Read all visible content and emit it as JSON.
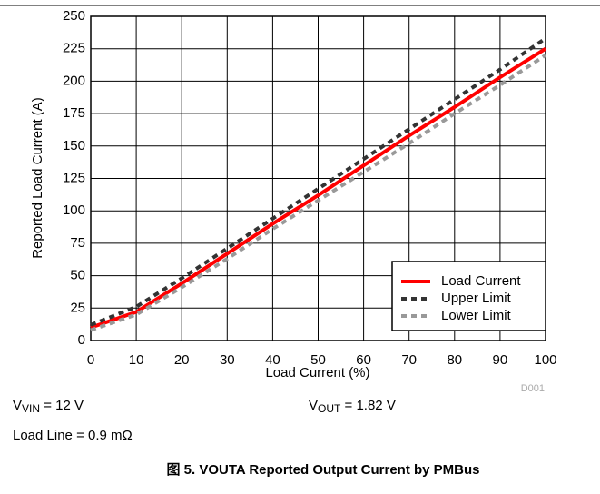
{
  "chart_data": {
    "type": "line",
    "x": [
      0,
      10,
      20,
      30,
      40,
      50,
      60,
      70,
      80,
      90,
      100
    ],
    "series": [
      {
        "name": "Load Current",
        "color": "#ff0000",
        "dash": "solid",
        "values": [
          10,
          22,
          44,
          67,
          90,
          112,
          135,
          158,
          180,
          203,
          225
        ]
      },
      {
        "name": "Upper Limit",
        "color": "#333333",
        "dash": "dashed",
        "values": [
          12,
          26,
          48,
          71,
          94,
          117,
          140,
          163,
          186,
          209,
          233
        ]
      },
      {
        "name": "Lower Limit",
        "color": "#999999",
        "dash": "dashed",
        "values": [
          8,
          20,
          41,
          63,
          86,
          108,
          130,
          152,
          175,
          197,
          220
        ]
      }
    ],
    "xlim": [
      0,
      100
    ],
    "xticks": [
      0,
      10,
      20,
      30,
      40,
      50,
      60,
      70,
      80,
      90,
      100
    ],
    "ylim": [
      0,
      250
    ],
    "yticks": [
      0,
      25,
      50,
      75,
      100,
      125,
      150,
      175,
      200,
      225,
      250
    ],
    "xlabel": "Load Current (%)",
    "ylabel": "Reported Load Current (A)",
    "grid": true,
    "legend": "lower right",
    "code": "D001",
    "annotations": [
      {
        "main": "V",
        "sub": "VIN",
        "rest": " = 12 V"
      },
      {
        "main": "V",
        "sub": "OUT",
        "rest": " = 1.82 V"
      },
      {
        "text": "Load Line = 0.9 mΩ"
      }
    ],
    "caption": "图 5. VOUTA Reported Output Current by PMBus"
  }
}
